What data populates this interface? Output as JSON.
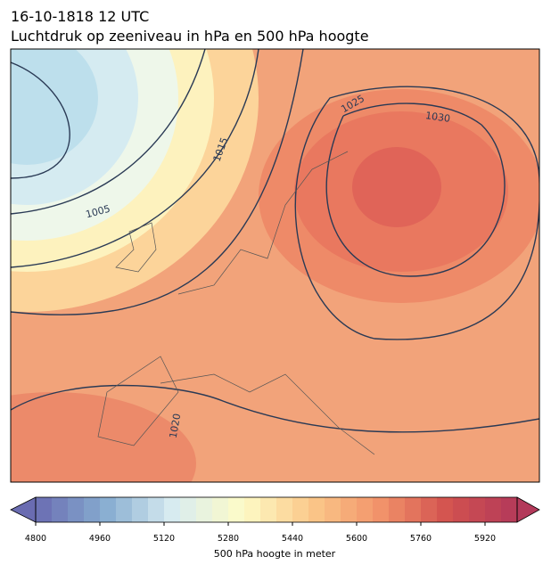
{
  "title": [
    "16-10-1818 12 UTC",
    "Luchtdruk op zeeniveau in hPa en 500 hPa hoogte"
  ],
  "isobar_labels": [
    1005,
    1015,
    1025,
    1030,
    1020
  ],
  "colorbar": {
    "label": "500 hPa hoogte in meter",
    "lim": [
      4800,
      6000
    ],
    "step": 40,
    "ticks": [
      4800,
      4960,
      5120,
      5280,
      5440,
      5600,
      5760,
      5920
    ],
    "colors": [
      "#6a6cb1",
      "#86acd0",
      "#d8ecf1",
      "#fdfbc7",
      "#fbc98a",
      "#f2936a",
      "#d2524f",
      "#b3395a"
    ]
  }
}
